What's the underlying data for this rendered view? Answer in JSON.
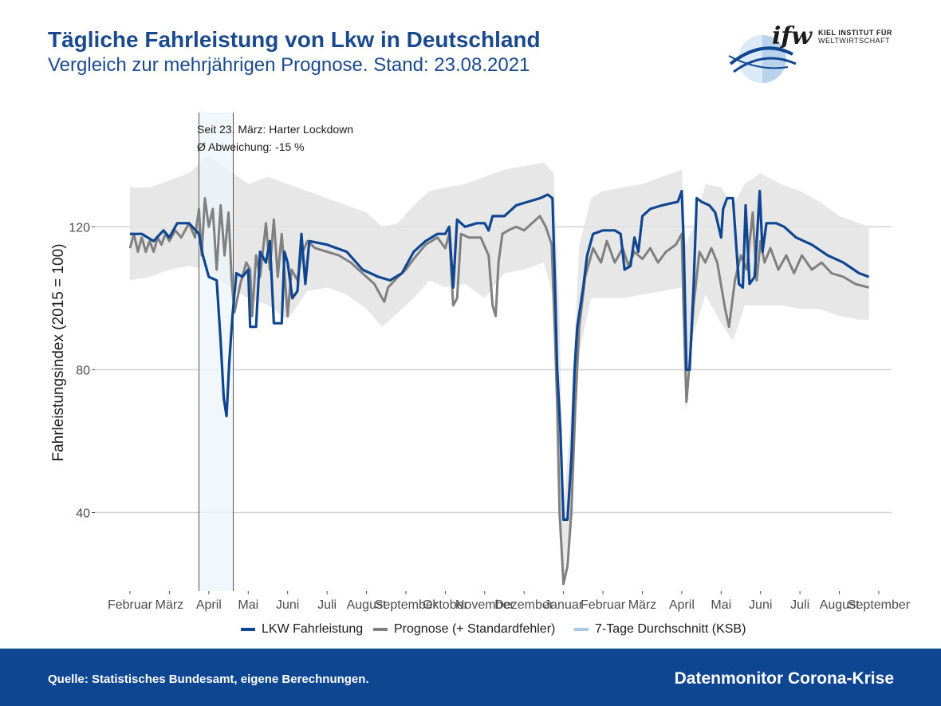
{
  "header": {
    "title": "Tägliche Fahrleistung von Lkw in Deutschland",
    "subtitle": "Vergleich zur mehrjährigen Prognose. Stand: 23.08.2021"
  },
  "logo": {
    "mark": "ifw",
    "line1": "KIEL INSTITUT FÜR",
    "line2": "WELTWIRTSCHAFT"
  },
  "footer": {
    "source": "Quelle: Statistisches Bundesamt, eigene Berechnungen.",
    "brand": "Datenmonitor Corona-Krise"
  },
  "colors": {
    "lkw": "#0e4691",
    "prognose": "#808080",
    "band": "#e3e3e3",
    "ksb": "#a8c8e8",
    "lockdown_fill": "#eef4fa",
    "grid": "#d4d4d4"
  },
  "chart_data": {
    "type": "line",
    "xlabel": "",
    "ylabel": "Fahrleistungsindex (2015 = 100)",
    "ylim": [
      18,
      152
    ],
    "yticks": [
      40,
      80,
      120
    ],
    "grid": true,
    "legend_position": "bottom",
    "month_ticks": [
      {
        "label": "Februar",
        "t": 0
      },
      {
        "label": "März",
        "t": 1
      },
      {
        "label": "April",
        "t": 2
      },
      {
        "label": "Mai",
        "t": 3
      },
      {
        "label": "Juni",
        "t": 4
      },
      {
        "label": "Juli",
        "t": 5
      },
      {
        "label": "August",
        "t": 6
      },
      {
        "label": "September",
        "t": 7
      },
      {
        "label": "Oktober",
        "t": 8
      },
      {
        "label": "November",
        "t": 9
      },
      {
        "label": "Dezember",
        "t": 10
      },
      {
        "label": "Januar",
        "t": 11
      },
      {
        "label": "Februar",
        "t": 12
      },
      {
        "label": "März",
        "t": 13
      },
      {
        "label": "April",
        "t": 14
      },
      {
        "label": "Mai",
        "t": 15
      },
      {
        "label": "Juni",
        "t": 16
      },
      {
        "label": "Juli",
        "t": 17
      },
      {
        "label": "August",
        "t": 18
      },
      {
        "label": "September",
        "t": 19
      }
    ],
    "annotation": {
      "line1": "Seit 23. März: Harter Lockdown",
      "line2": "Ø Abweichung: -15 %",
      "period": [
        1.75,
        2.62
      ]
    },
    "legend": [
      {
        "label": "LKW Fahrleistung",
        "color": "#0e4691"
      },
      {
        "label": "Prognose (+ Standardfehler)",
        "color": "#808080"
      },
      {
        "label": "7-Tage Durchschnitt (KSB)",
        "color": "#a8c8e8"
      }
    ],
    "series": [
      {
        "name": "LKW Fahrleistung",
        "points": [
          [
            0,
            118
          ],
          [
            0.3,
            118
          ],
          [
            0.6,
            116
          ],
          [
            0.85,
            119
          ],
          [
            1.0,
            117
          ],
          [
            1.2,
            121
          ],
          [
            1.5,
            121
          ],
          [
            1.75,
            118
          ],
          [
            1.85,
            112
          ],
          [
            2.0,
            106
          ],
          [
            2.2,
            105
          ],
          [
            2.3,
            88
          ],
          [
            2.38,
            72
          ],
          [
            2.45,
            67
          ],
          [
            2.52,
            82
          ],
          [
            2.6,
            95
          ],
          [
            2.7,
            107
          ],
          [
            2.85,
            106
          ],
          [
            3.0,
            108
          ],
          [
            3.05,
            92
          ],
          [
            3.2,
            92
          ],
          [
            3.3,
            113
          ],
          [
            3.45,
            110
          ],
          [
            3.55,
            116
          ],
          [
            3.65,
            93
          ],
          [
            3.85,
            93
          ],
          [
            3.92,
            113
          ],
          [
            4.0,
            110
          ],
          [
            4.12,
            100
          ],
          [
            4.25,
            102
          ],
          [
            4.35,
            118
          ],
          [
            4.45,
            104
          ],
          [
            4.55,
            116
          ],
          [
            5.0,
            115
          ],
          [
            5.5,
            113
          ],
          [
            5.9,
            108
          ],
          [
            6.3,
            106
          ],
          [
            6.6,
            105
          ],
          [
            6.9,
            107
          ],
          [
            7.2,
            113
          ],
          [
            7.5,
            116
          ],
          [
            7.8,
            118
          ],
          [
            8.0,
            118
          ],
          [
            8.1,
            120
          ],
          [
            8.2,
            103
          ],
          [
            8.3,
            122
          ],
          [
            8.5,
            120
          ],
          [
            8.8,
            121
          ],
          [
            9.0,
            121
          ],
          [
            9.1,
            119
          ],
          [
            9.2,
            123
          ],
          [
            9.5,
            123
          ],
          [
            9.8,
            126
          ],
          [
            10.1,
            127
          ],
          [
            10.4,
            128
          ],
          [
            10.6,
            129
          ],
          [
            10.72,
            128
          ],
          [
            10.78,
            105
          ],
          [
            10.84,
            80
          ],
          [
            10.92,
            63
          ],
          [
            11.0,
            38
          ],
          [
            11.1,
            38
          ],
          [
            11.2,
            55
          ],
          [
            11.28,
            80
          ],
          [
            11.35,
            92
          ],
          [
            11.5,
            103
          ],
          [
            11.6,
            112
          ],
          [
            11.75,
            118
          ],
          [
            12.0,
            119
          ],
          [
            12.3,
            119
          ],
          [
            12.45,
            118
          ],
          [
            12.55,
            108
          ],
          [
            12.7,
            109
          ],
          [
            12.8,
            117
          ],
          [
            12.9,
            113
          ],
          [
            13.0,
            123
          ],
          [
            13.2,
            125
          ],
          [
            13.5,
            126
          ],
          [
            13.9,
            127
          ],
          [
            14.0,
            130
          ],
          [
            14.05,
            115
          ],
          [
            14.12,
            80
          ],
          [
            14.2,
            80
          ],
          [
            14.3,
            103
          ],
          [
            14.38,
            128
          ],
          [
            14.5,
            127
          ],
          [
            14.7,
            126
          ],
          [
            14.85,
            124
          ],
          [
            15.0,
            117
          ],
          [
            15.05,
            125
          ],
          [
            15.15,
            128
          ],
          [
            15.3,
            128
          ],
          [
            15.45,
            104
          ],
          [
            15.55,
            103
          ],
          [
            15.62,
            126
          ],
          [
            15.72,
            104
          ],
          [
            15.85,
            106
          ],
          [
            15.98,
            130
          ],
          [
            16.05,
            113
          ],
          [
            16.15,
            121
          ],
          [
            16.4,
            121
          ],
          [
            16.6,
            120
          ],
          [
            16.9,
            117
          ],
          [
            17.3,
            115
          ],
          [
            17.7,
            112
          ],
          [
            18.1,
            110
          ],
          [
            18.5,
            107
          ],
          [
            18.75,
            106
          ]
        ]
      },
      {
        "name": "Prognose (+ Standardfehler)",
        "points": [
          [
            0,
            114
          ],
          [
            0.1,
            118
          ],
          [
            0.2,
            113
          ],
          [
            0.3,
            117
          ],
          [
            0.4,
            113
          ],
          [
            0.5,
            116
          ],
          [
            0.6,
            113
          ],
          [
            0.7,
            117
          ],
          [
            0.8,
            115
          ],
          [
            0.9,
            118
          ],
          [
            1.0,
            116
          ],
          [
            1.15,
            119
          ],
          [
            1.3,
            117
          ],
          [
            1.5,
            121
          ],
          [
            1.65,
            117
          ],
          [
            1.75,
            125
          ],
          [
            1.82,
            112
          ],
          [
            1.9,
            128
          ],
          [
            2.0,
            120
          ],
          [
            2.1,
            125
          ],
          [
            2.2,
            108
          ],
          [
            2.3,
            126
          ],
          [
            2.4,
            112
          ],
          [
            2.5,
            124
          ],
          [
            2.58,
            105
          ],
          [
            2.65,
            96
          ],
          [
            2.8,
            104
          ],
          [
            2.95,
            110
          ],
          [
            3.05,
            108
          ],
          [
            3.1,
            95
          ],
          [
            3.2,
            112
          ],
          [
            3.3,
            106
          ],
          [
            3.45,
            121
          ],
          [
            3.55,
            108
          ],
          [
            3.65,
            122
          ],
          [
            3.75,
            106
          ],
          [
            3.85,
            118
          ],
          [
            4.0,
            95
          ],
          [
            4.1,
            108
          ],
          [
            4.25,
            105
          ],
          [
            4.35,
            112
          ],
          [
            4.5,
            116
          ],
          [
            4.7,
            114
          ],
          [
            5.0,
            113
          ],
          [
            5.3,
            112
          ],
          [
            5.6,
            110
          ],
          [
            5.9,
            107
          ],
          [
            6.2,
            104
          ],
          [
            6.35,
            101
          ],
          [
            6.45,
            99
          ],
          [
            6.55,
            103
          ],
          [
            6.8,
            106
          ],
          [
            7.0,
            108
          ],
          [
            7.2,
            111
          ],
          [
            7.5,
            115
          ],
          [
            7.8,
            117
          ],
          [
            8.0,
            114
          ],
          [
            8.1,
            118
          ],
          [
            8.2,
            98
          ],
          [
            8.3,
            100
          ],
          [
            8.4,
            118
          ],
          [
            8.6,
            117
          ],
          [
            8.9,
            117
          ],
          [
            9.1,
            112
          ],
          [
            9.2,
            98
          ],
          [
            9.28,
            95
          ],
          [
            9.35,
            110
          ],
          [
            9.45,
            118
          ],
          [
            9.6,
            119
          ],
          [
            9.8,
            120
          ],
          [
            10.0,
            119
          ],
          [
            10.2,
            121
          ],
          [
            10.4,
            123
          ],
          [
            10.55,
            120
          ],
          [
            10.7,
            115
          ],
          [
            10.78,
            90
          ],
          [
            10.84,
            70
          ],
          [
            10.9,
            40
          ],
          [
            11.0,
            20
          ],
          [
            11.1,
            25
          ],
          [
            11.2,
            40
          ],
          [
            11.3,
            70
          ],
          [
            11.4,
            92
          ],
          [
            11.55,
            106
          ],
          [
            11.75,
            114
          ],
          [
            11.95,
            110
          ],
          [
            12.1,
            116
          ],
          [
            12.3,
            110
          ],
          [
            12.5,
            114
          ],
          [
            12.65,
            109
          ],
          [
            12.8,
            113
          ],
          [
            13.0,
            111
          ],
          [
            13.2,
            114
          ],
          [
            13.4,
            110
          ],
          [
            13.6,
            113
          ],
          [
            13.85,
            115
          ],
          [
            14.0,
            118
          ],
          [
            14.05,
            95
          ],
          [
            14.12,
            71
          ],
          [
            14.2,
            82
          ],
          [
            14.3,
            98
          ],
          [
            14.45,
            113
          ],
          [
            14.6,
            110
          ],
          [
            14.75,
            114
          ],
          [
            14.9,
            110
          ],
          [
            15.1,
            97
          ],
          [
            15.2,
            92
          ],
          [
            15.35,
            105
          ],
          [
            15.5,
            112
          ],
          [
            15.65,
            108
          ],
          [
            15.8,
            124
          ],
          [
            15.9,
            105
          ],
          [
            16.0,
            116
          ],
          [
            16.1,
            110
          ],
          [
            16.25,
            114
          ],
          [
            16.45,
            108
          ],
          [
            16.65,
            112
          ],
          [
            16.85,
            107
          ],
          [
            17.05,
            112
          ],
          [
            17.3,
            108
          ],
          [
            17.55,
            110
          ],
          [
            17.8,
            107
          ],
          [
            18.1,
            106
          ],
          [
            18.4,
            104
          ],
          [
            18.75,
            103
          ]
        ]
      }
    ],
    "prognose_band": [
      [
        0,
        105,
        131
      ],
      [
        0.5,
        106,
        131
      ],
      [
        1.0,
        108,
        133
      ],
      [
        1.5,
        109,
        135
      ],
      [
        2.0,
        108,
        140
      ],
      [
        2.5,
        103,
        136
      ],
      [
        3.0,
        100,
        132
      ],
      [
        3.5,
        98,
        134
      ],
      [
        4.0,
        94,
        132
      ],
      [
        4.5,
        102,
        130
      ],
      [
        5.0,
        103,
        128
      ],
      [
        5.5,
        101,
        126
      ],
      [
        6.0,
        97,
        124
      ],
      [
        6.4,
        92,
        120
      ],
      [
        6.8,
        96,
        121
      ],
      [
        7.2,
        100,
        126
      ],
      [
        7.6,
        105,
        130
      ],
      [
        8.0,
        103,
        131
      ],
      [
        8.5,
        104,
        132
      ],
      [
        9.0,
        100,
        134
      ],
      [
        9.5,
        107,
        136
      ],
      [
        10.0,
        108,
        137
      ],
      [
        10.5,
        110,
        138
      ],
      [
        10.75,
        100,
        135
      ],
      [
        10.9,
        40,
        95
      ],
      [
        11.0,
        22,
        40
      ],
      [
        11.2,
        38,
        70
      ],
      [
        11.4,
        85,
        115
      ],
      [
        11.7,
        100,
        128
      ],
      [
        12.0,
        100,
        130
      ],
      [
        12.5,
        100,
        131
      ],
      [
        13.0,
        101,
        132
      ],
      [
        13.5,
        102,
        134
      ],
      [
        14.0,
        103,
        136
      ],
      [
        14.1,
        68,
        115
      ],
      [
        14.3,
        90,
        120
      ],
      [
        14.6,
        101,
        132
      ],
      [
        15.0,
        93,
        131
      ],
      [
        15.3,
        88,
        126
      ],
      [
        15.6,
        98,
        132
      ],
      [
        16.0,
        98,
        135
      ],
      [
        16.5,
        98,
        132
      ],
      [
        17.0,
        97,
        130
      ],
      [
        17.5,
        97,
        127
      ],
      [
        18.0,
        95,
        123
      ],
      [
        18.5,
        94,
        121
      ],
      [
        18.75,
        94,
        120
      ]
    ]
  }
}
